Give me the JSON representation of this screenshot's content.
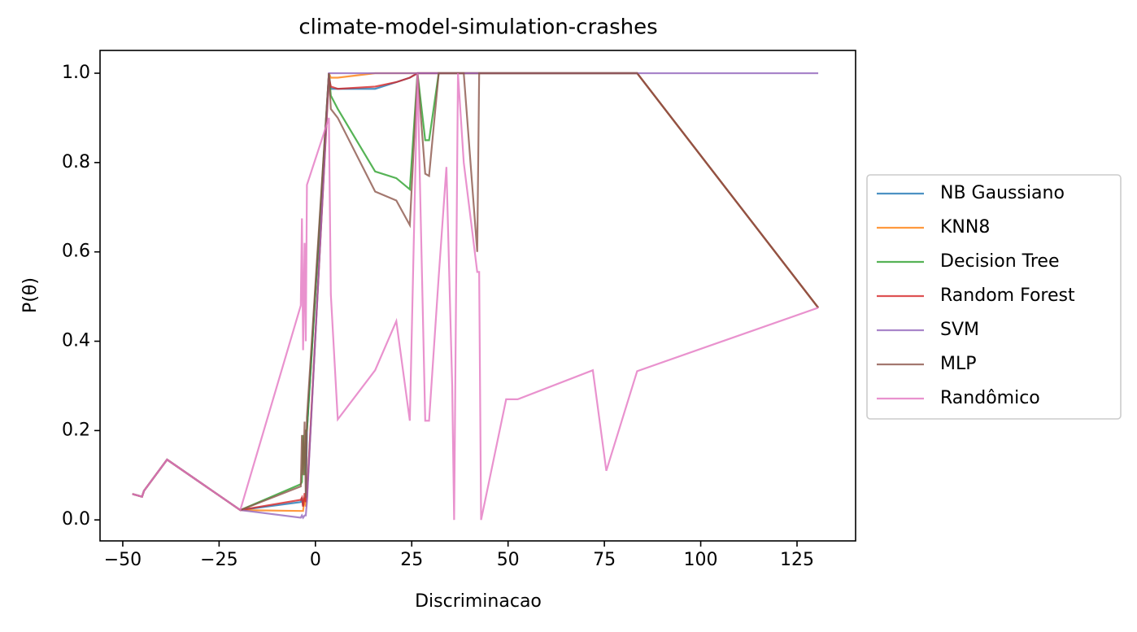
{
  "chart_data": {
    "type": "line",
    "title": "climate-model-simulation-crashes",
    "x_label": "Discriminacao",
    "y_label": "P(θ)",
    "x": [
      -47.5,
      -45,
      -44.5,
      -38.5,
      -19.5,
      -3.8,
      -3.5,
      -3.2,
      -2.8,
      -2.5,
      -2.2,
      3.5,
      4,
      5.8,
      15.5,
      21,
      24.5,
      26.5,
      28.5,
      29.5,
      32,
      34,
      35.5,
      36,
      37,
      38.5,
      42,
      42.5,
      43,
      49.5,
      52.5,
      72,
      75.5,
      83.5,
      130.5
    ],
    "series": [
      {
        "name": "NB Gaussiano",
        "color": "#1f77b4",
        "values": [
          0.058,
          0.052,
          0.065,
          0.135,
          0.022,
          0.04,
          0.05,
          0.03,
          0.05,
          0.04,
          0.2,
          1.0,
          0.965,
          0.965,
          0.965,
          0.98,
          0.99,
          1.0,
          1.0,
          1.0,
          1.0,
          1.0,
          1.0,
          1.0,
          1.0,
          1.0,
          1.0,
          1.0,
          1.0,
          1.0,
          1.0,
          1.0,
          1.0,
          1.0,
          0.475
        ]
      },
      {
        "name": "KNN8",
        "color": "#ff7f0e",
        "values": [
          0.058,
          0.052,
          0.065,
          0.135,
          0.022,
          0.02,
          0.02,
          0.02,
          0.05,
          0.03,
          0.05,
          1.0,
          0.99,
          0.99,
          1.0,
          1.0,
          1.0,
          1.0,
          1.0,
          1.0,
          1.0,
          1.0,
          1.0,
          1.0,
          1.0,
          1.0,
          1.0,
          1.0,
          1.0,
          1.0,
          1.0,
          1.0,
          1.0,
          1.0,
          0.475
        ]
      },
      {
        "name": "Decision Tree",
        "color": "#2ca02c",
        "values": [
          0.058,
          0.052,
          0.065,
          0.135,
          0.022,
          0.08,
          0.085,
          0.19,
          0.1,
          0.2,
          0.2,
          1.0,
          0.95,
          0.92,
          0.78,
          0.765,
          0.74,
          1.0,
          0.85,
          0.85,
          1.0,
          1.0,
          1.0,
          1.0,
          1.0,
          1.0,
          1.0,
          1.0,
          1.0,
          1.0,
          1.0,
          1.0,
          1.0,
          1.0,
          0.475
        ]
      },
      {
        "name": "Random Forest",
        "color": "#d62728",
        "values": [
          0.058,
          0.052,
          0.065,
          0.135,
          0.022,
          0.045,
          0.05,
          0.03,
          0.06,
          0.04,
          0.05,
          0.99,
          0.97,
          0.965,
          0.97,
          0.98,
          0.99,
          1.0,
          1.0,
          1.0,
          1.0,
          1.0,
          1.0,
          1.0,
          1.0,
          1.0,
          1.0,
          1.0,
          1.0,
          1.0,
          1.0,
          1.0,
          1.0,
          1.0,
          0.475
        ]
      },
      {
        "name": "SVM",
        "color": "#9467bd",
        "values": [
          0.058,
          0.052,
          0.065,
          0.135,
          0.022,
          0.005,
          0.01,
          0.005,
          0.01,
          0.01,
          0.04,
          1.0,
          1.0,
          1.0,
          1.0,
          1.0,
          1.0,
          1.0,
          1.0,
          1.0,
          1.0,
          1.0,
          1.0,
          1.0,
          1.0,
          1.0,
          1.0,
          1.0,
          1.0,
          1.0,
          1.0,
          1.0,
          1.0,
          1.0,
          1.0
        ]
      },
      {
        "name": "MLP",
        "color": "#8c564b",
        "values": [
          0.058,
          0.052,
          0.065,
          0.135,
          0.022,
          0.075,
          0.19,
          0.1,
          0.22,
          0.05,
          0.23,
          1.0,
          0.92,
          0.9,
          0.735,
          0.715,
          0.66,
          1.0,
          0.775,
          0.77,
          1.0,
          1.0,
          1.0,
          1.0,
          1.0,
          1.0,
          0.6,
          1.0,
          1.0,
          1.0,
          1.0,
          1.0,
          1.0,
          1.0,
          0.475
        ]
      },
      {
        "name": "Randômico",
        "color": "#e377c2",
        "values": [
          0.058,
          0.052,
          0.065,
          0.135,
          0.022,
          0.48,
          0.675,
          0.38,
          0.62,
          0.4,
          0.75,
          0.9,
          0.505,
          0.225,
          0.335,
          0.445,
          0.222,
          1.0,
          0.222,
          0.222,
          0.545,
          0.79,
          0.3,
          0.0,
          1.0,
          0.8,
          0.555,
          0.555,
          0.0,
          0.27,
          0.27,
          0.335,
          0.11,
          0.333,
          0.475
        ]
      }
    ],
    "xlim": [
      -55.9,
      140.2
    ],
    "ylim": [
      -0.047,
      1.051
    ],
    "xticks": [
      {
        "value": -50,
        "label": "−50"
      },
      {
        "value": -25,
        "label": "−25"
      },
      0,
      25,
      50,
      75,
      100,
      125
    ],
    "yticks": [
      {
        "value": 0,
        "label": "0.0"
      },
      0.2,
      0.4,
      0.6,
      0.8,
      {
        "value": 1,
        "label": "1.0"
      }
    ],
    "legend": "outside-right"
  }
}
